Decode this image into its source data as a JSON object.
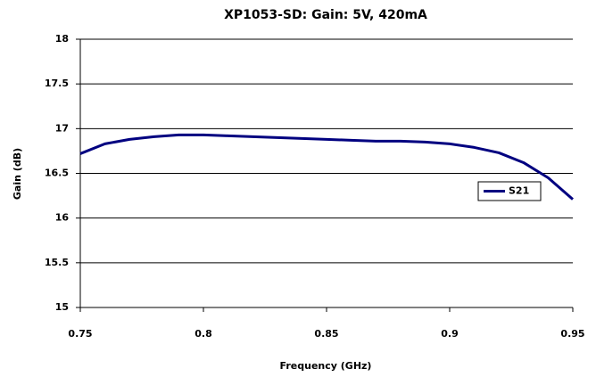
{
  "chart_data": {
    "type": "line",
    "title": "XP1053-SD: Gain: 5V, 420mA",
    "x_label": "Frequency (GHz)",
    "y_label": "Gain (dB)",
    "x": [
      0.75,
      0.76,
      0.77,
      0.78,
      0.79,
      0.8,
      0.81,
      0.82,
      0.83,
      0.84,
      0.85,
      0.86,
      0.87,
      0.88,
      0.89,
      0.9,
      0.91,
      0.92,
      0.93,
      0.94,
      0.95
    ],
    "series": [
      {
        "name": "S21",
        "color": "#000080",
        "values": [
          16.72,
          16.83,
          16.88,
          16.91,
          16.93,
          16.93,
          16.92,
          16.91,
          16.9,
          16.89,
          16.88,
          16.87,
          16.86,
          16.86,
          16.85,
          16.83,
          16.79,
          16.73,
          16.62,
          16.45,
          16.21
        ]
      }
    ],
    "xlim": [
      0.75,
      0.95
    ],
    "xticks": [
      0.75,
      0.8,
      0.85,
      0.9,
      0.95
    ],
    "ylim": [
      15,
      18
    ],
    "yticks": [
      15,
      15.5,
      16,
      16.5,
      17,
      17.5,
      18
    ],
    "grid": true,
    "legend": "right"
  }
}
